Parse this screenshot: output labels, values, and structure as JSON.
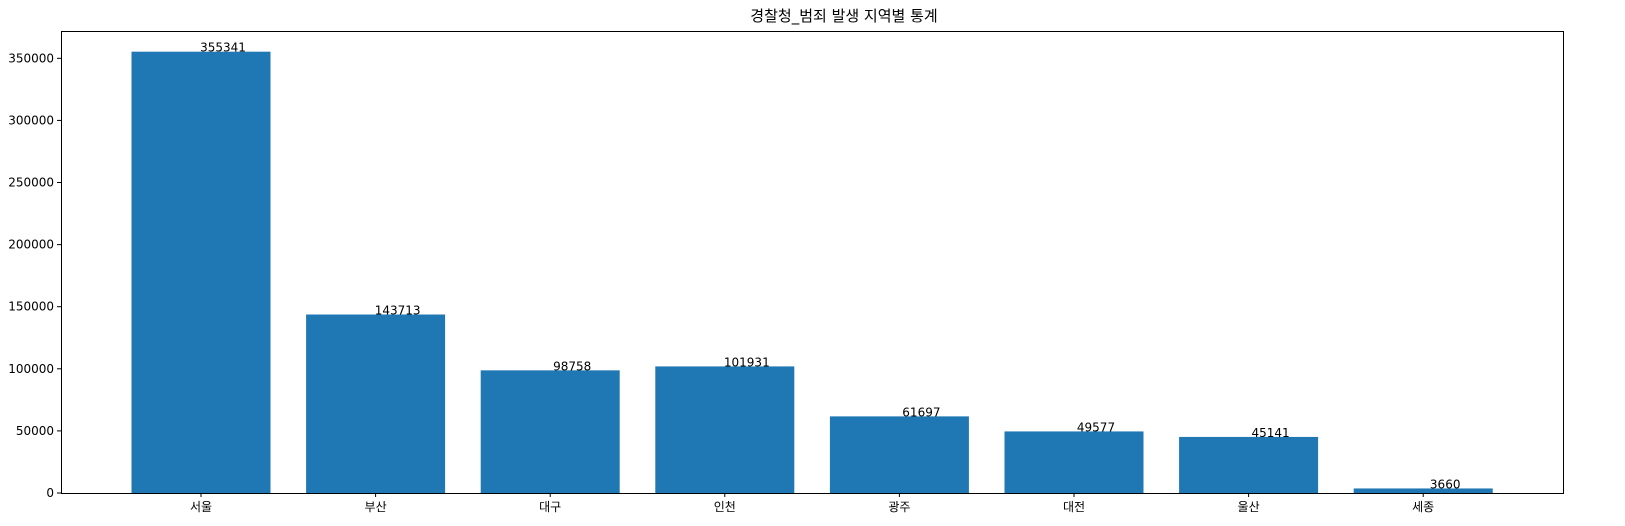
{
  "chart_data": {
    "type": "bar",
    "title": "경찰청_범죄 발생 지역별 통계",
    "xlabel": "",
    "ylabel": "",
    "categories": [
      "서울",
      "부산",
      "대구",
      "인천",
      "광주",
      "대전",
      "울산",
      "세종"
    ],
    "values": [
      355341,
      143713,
      98758,
      101931,
      61697,
      49577,
      45141,
      3660
    ],
    "ylim": [
      0,
      372000
    ],
    "yticks": [
      0,
      50000,
      100000,
      150000,
      200000,
      250000,
      300000,
      350000
    ],
    "grid": false,
    "legend": "none",
    "bar_color": "#1f77b4"
  }
}
